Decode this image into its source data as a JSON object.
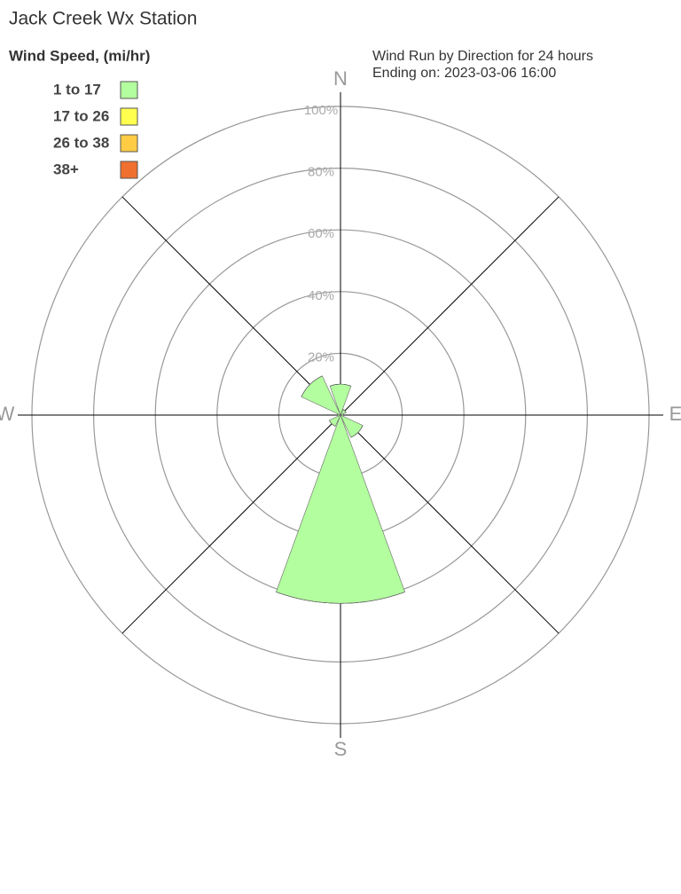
{
  "chart_data": {
    "type": "windrose",
    "title": "Jack Creek Wx Station",
    "subtitle": [
      "Wind Run by Direction for 24 hours",
      "Ending on: 2023-03-06 16:00"
    ],
    "legend_title": "Wind Speed, (mi/hr)",
    "categories": [
      "N",
      null,
      "E",
      null,
      "S",
      null,
      "W",
      null
    ],
    "series": [
      {
        "name": "1 to 17",
        "color": "#b3ff9f",
        "values": [
          10,
          2,
          1,
          8,
          61,
          4,
          1,
          14
        ]
      },
      {
        "name": "17 to 26",
        "color": "#ffff4d",
        "values": [
          0,
          0,
          0,
          0,
          0,
          0,
          0,
          0
        ]
      },
      {
        "name": "26 to 38",
        "color": "#ffcc44",
        "values": [
          0,
          0,
          0,
          0,
          0,
          0,
          0,
          0
        ]
      },
      {
        "name": "38+",
        "color": "#f07030",
        "values": [
          0,
          0,
          0,
          0,
          0,
          0,
          0,
          0
        ]
      }
    ],
    "rlim": [
      0,
      100
    ],
    "rticks": [
      {
        "value": 20,
        "label": "20%"
      },
      {
        "value": 40,
        "label": "40%"
      },
      {
        "value": 60,
        "label": "60%"
      },
      {
        "value": 80,
        "label": "80%"
      },
      {
        "value": 100,
        "label": "100%"
      }
    ],
    "grid": true,
    "legend": "upper left"
  }
}
